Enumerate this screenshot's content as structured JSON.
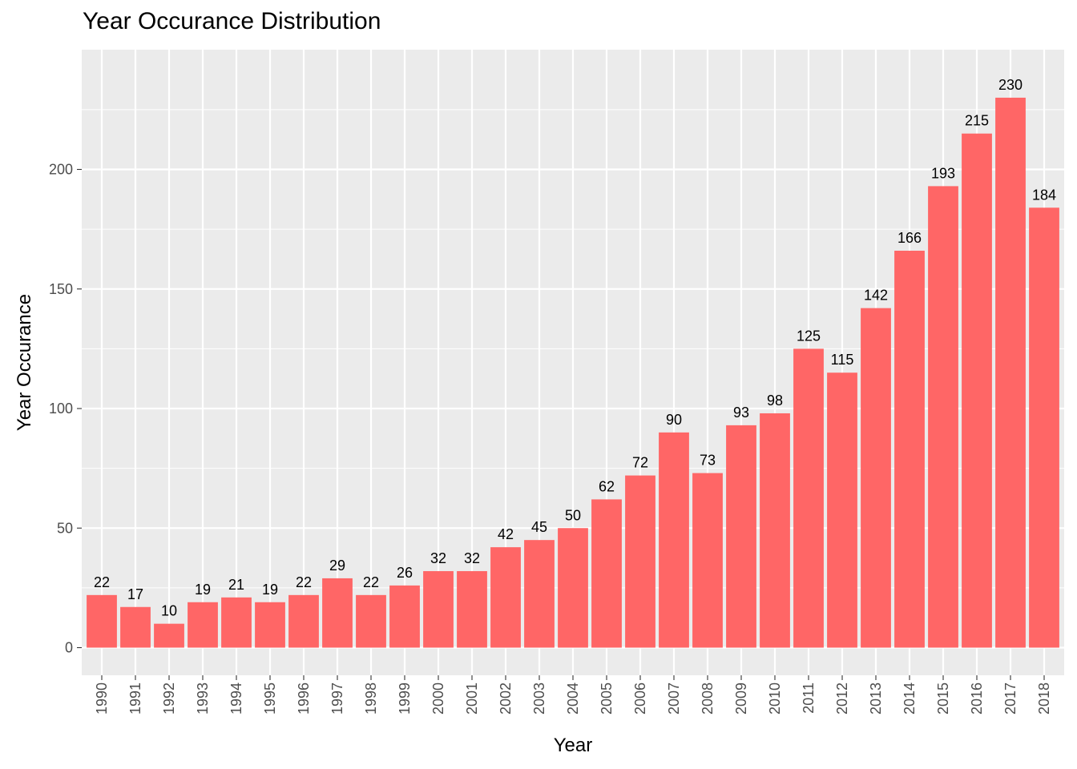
{
  "chart_data": {
    "type": "bar",
    "title": "Year Occurance Distribution",
    "xlabel": "Year",
    "ylabel": "Year Occurance",
    "categories": [
      "1990",
      "1991",
      "1992",
      "1993",
      "1994",
      "1995",
      "1996",
      "1997",
      "1998",
      "1999",
      "2000",
      "2001",
      "2002",
      "2003",
      "2004",
      "2005",
      "2006",
      "2007",
      "2008",
      "2009",
      "2010",
      "2011",
      "2012",
      "2013",
      "2014",
      "2015",
      "2016",
      "2017",
      "2018"
    ],
    "values": [
      22,
      17,
      10,
      19,
      21,
      19,
      22,
      29,
      22,
      26,
      32,
      32,
      42,
      45,
      50,
      62,
      72,
      90,
      73,
      93,
      98,
      125,
      115,
      142,
      166,
      193,
      215,
      230,
      184
    ],
    "y_ticks": [
      0,
      50,
      100,
      150,
      200
    ],
    "ylim": [
      -11.5,
      250
    ],
    "grid": true,
    "bar_color": "#ff6666",
    "panel_background": "#ebebeb",
    "grid_color": "#ffffff"
  }
}
